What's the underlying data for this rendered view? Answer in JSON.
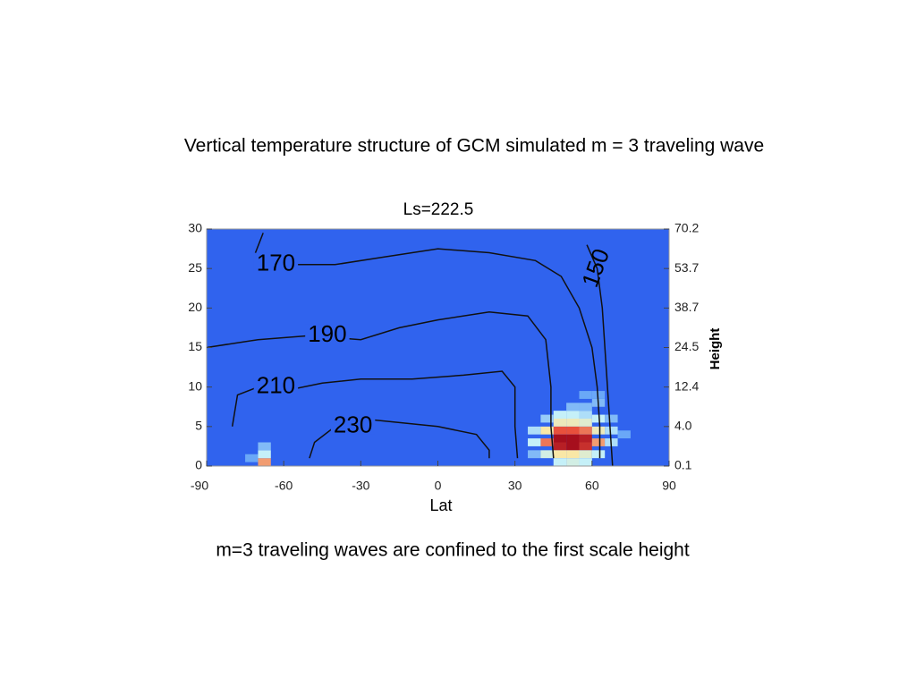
{
  "slide": {
    "title": "Vertical temperature structure of GCM simulated m = 3 traveling wave",
    "caption": "m=3 traveling waves are confined to the first scale height"
  },
  "chart_data": {
    "type": "contour",
    "title": "Ls=222.5",
    "xlabel": "Lat",
    "y2label": "Height",
    "xlim": [
      -90,
      90
    ],
    "xticks": [
      -90,
      -60,
      -30,
      0,
      30,
      60,
      90
    ],
    "ylim": [
      0,
      30
    ],
    "yticks": [
      0,
      5,
      10,
      15,
      20,
      25,
      30
    ],
    "y2ticks": [
      {
        "value": 0.1,
        "label": "0.1"
      },
      {
        "value": 4,
        "label": "4.0"
      },
      {
        "value": 12.4,
        "label": "12.4"
      },
      {
        "value": 24.5,
        "label": "24.5"
      },
      {
        "value": 38.7,
        "label": "38.7"
      },
      {
        "value": 53.7,
        "label": "53.7"
      },
      {
        "value": 70.2,
        "label": "70.2"
      }
    ],
    "background_color": "#3063ee",
    "contour_color": "#111111",
    "colormap": [
      "#3063ee",
      "#6aa8f7",
      "#c5f0f8",
      "#f9e7a6",
      "#e8503c",
      "#a60f1d"
    ],
    "cells": {
      "x": [
        47.5,
        52.5,
        57.5,
        47.5,
        52.5,
        57.5,
        42.5,
        62.5,
        47.5,
        52.5,
        57.5,
        42.5,
        62.5,
        47.5,
        52.5,
        57.5,
        47.5,
        52.5,
        57.5,
        37.5,
        37.5,
        67.5,
        67.5,
        52.5,
        47.5,
        57.5,
        62.5,
        47.5,
        52.5,
        57.5,
        62.5,
        52.5,
        57.5,
        62.5,
        42.5,
        37.5,
        42.5,
        67.5,
        72.5,
        62.5,
        57.5,
        -67.5,
        -67.5,
        -67.5,
        -72.5
      ],
      "y": [
        3.5,
        3.5,
        3.5,
        2.5,
        2.5,
        2.5,
        3,
        3,
        4.5,
        4.5,
        4.5,
        4.5,
        4.5,
        5.5,
        5.5,
        5.5,
        1.5,
        1.5,
        1.5,
        3,
        4.5,
        4.5,
        3,
        6.5,
        6.5,
        6.5,
        6,
        0.5,
        0.5,
        0.5,
        1.5,
        7.5,
        7.5,
        8,
        6,
        1.5,
        1.5,
        6,
        4,
        9,
        9,
        0.5,
        1.5,
        2.5,
        1
      ],
      "values": [
        1,
        1,
        0.95,
        0.95,
        1,
        0.9,
        0.75,
        0.7,
        0.8,
        0.8,
        0.75,
        0.6,
        0.55,
        0.55,
        0.55,
        0.5,
        0.6,
        0.6,
        0.5,
        0.4,
        0.35,
        0.35,
        0.35,
        0.4,
        0.4,
        0.35,
        0.4,
        0.4,
        0.45,
        0.4,
        0.4,
        0.25,
        0.25,
        0.25,
        0.3,
        0.25,
        0.45,
        0.25,
        0.2,
        0.2,
        0.2,
        0.7,
        0.4,
        0.25,
        0.2
      ]
    },
    "series": [
      {
        "name": 170,
        "x": [
          -68,
          -71,
          -70,
          -60,
          -40,
          -20,
          0,
          20,
          38,
          48,
          55,
          60,
          62,
          63,
          63
        ],
        "y": [
          29.5,
          27,
          25.5,
          25.5,
          25.5,
          26.5,
          27.5,
          27,
          26,
          24,
          20,
          15,
          10,
          5,
          1
        ]
      },
      {
        "name": 190,
        "x": [
          -90,
          -70,
          -50,
          -30,
          -15,
          0,
          20,
          35,
          42,
          44,
          44,
          45
        ],
        "y": [
          15,
          16,
          16.5,
          16,
          17.5,
          18.5,
          19.5,
          19,
          16,
          10,
          5,
          1
        ]
      },
      {
        "name": 210,
        "x": [
          -80,
          -78,
          -70,
          -60,
          -45,
          -30,
          -10,
          10,
          25,
          30,
          30,
          31
        ],
        "y": [
          5,
          9,
          10,
          9.5,
          10.5,
          11,
          11,
          11.5,
          12,
          10,
          5,
          1
        ]
      },
      {
        "name": 230,
        "x": [
          -50,
          -48,
          -40,
          -30,
          -15,
          0,
          15,
          20,
          20
        ],
        "y": [
          1,
          3,
          5,
          6,
          5.5,
          5,
          4,
          2,
          1
        ]
      },
      {
        "name": 150,
        "x": [
          58,
          62,
          64,
          65,
          66,
          67,
          68
        ],
        "y": [
          28,
          25,
          20,
          15,
          10,
          5,
          0
        ]
      }
    ]
  }
}
